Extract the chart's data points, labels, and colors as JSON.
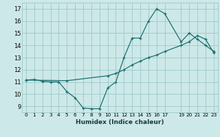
{
  "xlabel": "Humidex (Indice chaleur)",
  "background_color": "#cde8e8",
  "grid_color": "#a0cccc",
  "line_color": "#1a6e6e",
  "xlim": [
    -0.5,
    23.5
  ],
  "ylim": [
    8.5,
    17.5
  ],
  "yticks": [
    9,
    10,
    11,
    12,
    13,
    14,
    15,
    16,
    17
  ],
  "xtick_positions": [
    0,
    1,
    2,
    3,
    4,
    5,
    6,
    7,
    8,
    9,
    10,
    11,
    12,
    13,
    14,
    15,
    16,
    17,
    19,
    20,
    21,
    22,
    23
  ],
  "xtick_labels": [
    "0",
    "1",
    "2",
    "3",
    "4",
    "5",
    "6",
    "7",
    "8",
    "9",
    "10",
    "11",
    "12",
    "13",
    "14",
    "15",
    "16",
    "17",
    "19",
    "20",
    "21",
    "22",
    "23"
  ],
  "line1_x": [
    0,
    1,
    2,
    3,
    4,
    5,
    6,
    7,
    8,
    9,
    10,
    11,
    12,
    13,
    14,
    15,
    16,
    17,
    19,
    20,
    21,
    22,
    23
  ],
  "line1_y": [
    11.15,
    11.2,
    11.05,
    11.0,
    11.0,
    10.2,
    9.7,
    8.85,
    8.8,
    8.8,
    10.5,
    11.0,
    13.0,
    14.6,
    14.6,
    16.0,
    17.0,
    16.6,
    14.3,
    15.0,
    14.5,
    14.0,
    13.5
  ],
  "line2_x": [
    0,
    5,
    10,
    11,
    12,
    13,
    14,
    15,
    16,
    17,
    19,
    20,
    21,
    22,
    23
  ],
  "line2_y": [
    11.15,
    11.1,
    11.5,
    11.7,
    12.0,
    12.4,
    12.7,
    13.0,
    13.2,
    13.5,
    14.0,
    14.3,
    14.8,
    14.5,
    13.4
  ]
}
